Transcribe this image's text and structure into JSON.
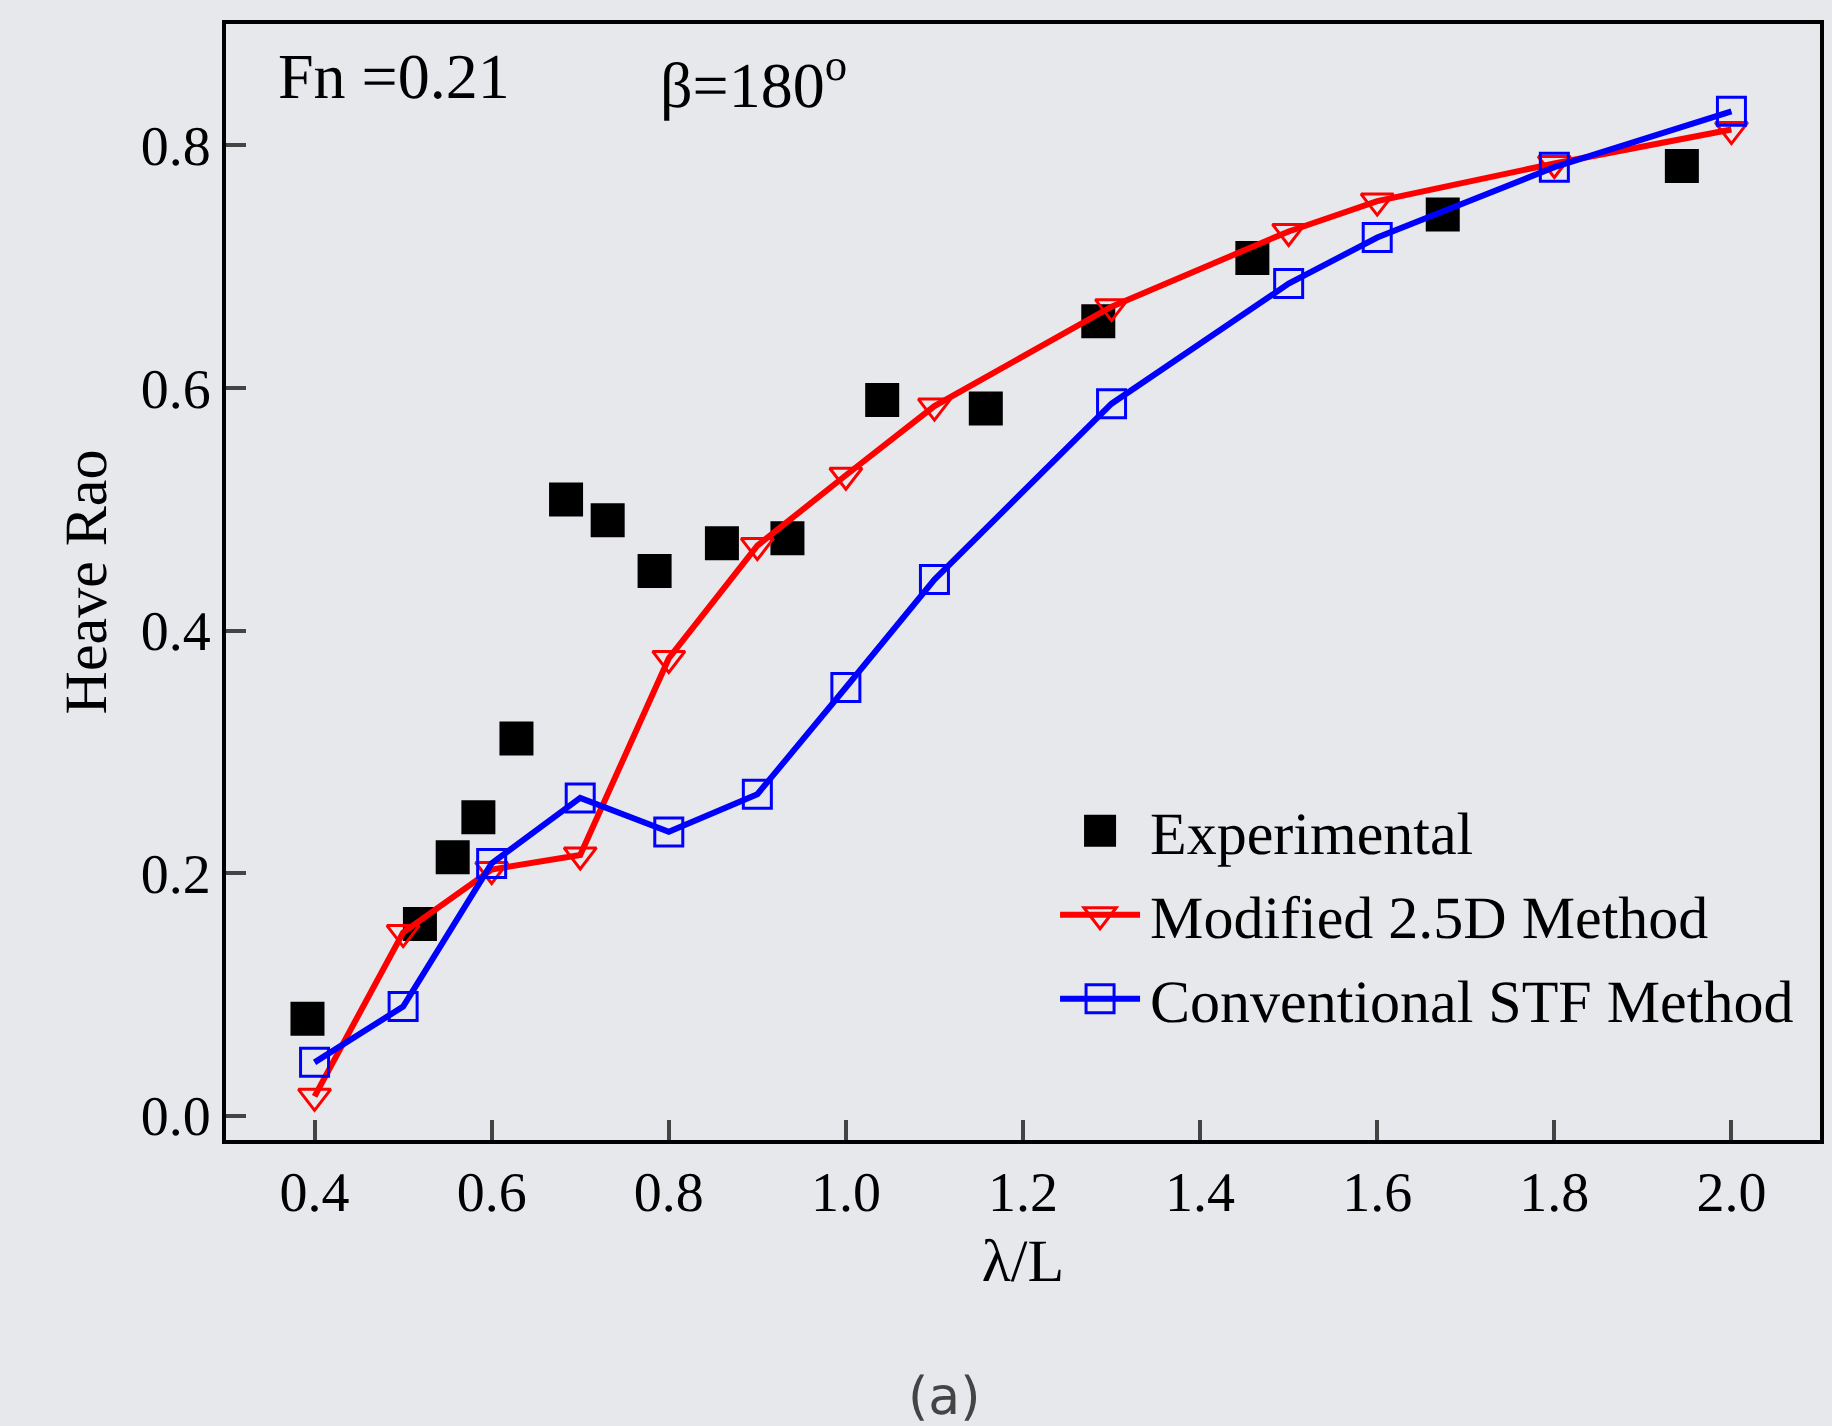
{
  "chart_data": {
    "type": "line",
    "xlabel": "λ/L",
    "ylabel": "Heave Rao",
    "annotations": [
      "Fn =0.21",
      "β=180$^{o}$",
      "(a)"
    ],
    "xlim": [
      0.3,
      2.1
    ],
    "xticks": [
      0.4,
      0.6,
      0.8,
      {
        "value": 1,
        "label": "1.0"
      },
      1.2,
      1.4,
      1.6,
      1.8,
      {
        "value": 2,
        "label": "2.0"
      }
    ],
    "ylim": [
      -0.02,
      0.9
    ],
    "yticks": [
      {
        "value": 0,
        "label": "0.0"
      },
      0.2,
      0.4,
      0.6,
      0.8
    ],
    "grid": false,
    "legend": "bottom right",
    "series": [
      {
        "name": "Experimental",
        "type": "scatter",
        "marker": "square",
        "color": "#000000",
        "x": [
          0.392,
          0.519,
          0.556,
          0.585,
          0.628,
          0.684,
          0.731,
          0.784,
          0.86,
          0.934,
          1.041,
          1.158,
          1.285,
          1.459,
          1.674,
          1.944
        ],
        "values": [
          0.08,
          0.158,
          0.213,
          0.246,
          0.311,
          0.508,
          0.491,
          0.449,
          0.472,
          0.476,
          0.59,
          0.583,
          0.655,
          0.707,
          0.743,
          0.783
        ]
      },
      {
        "name": "Modified 2.5D Method",
        "type": "line",
        "marker": "triangle",
        "color": "#ff0000",
        "x": [
          0.4,
          0.5,
          0.6,
          0.7,
          0.8,
          0.9,
          1.0,
          1.1,
          1.3,
          1.5,
          1.6,
          1.8,
          2.0
        ],
        "values": [
          0.016,
          0.151,
          0.203,
          0.215,
          0.377,
          0.47,
          0.528,
          0.585,
          0.667,
          0.729,
          0.754,
          0.785,
          0.813
        ]
      },
      {
        "name": "Conventional STF Method",
        "type": "line",
        "marker": "square",
        "color": "#0000ff",
        "x": [
          0.4,
          0.5,
          0.6,
          0.7,
          0.8,
          0.9,
          1.0,
          1.1,
          1.3,
          1.5,
          1.6,
          1.8,
          2.0
        ],
        "values": [
          0.044,
          0.09,
          0.208,
          0.262,
          0.234,
          0.265,
          0.353,
          0.442,
          0.587,
          0.686,
          0.724,
          0.782,
          0.828
        ]
      }
    ]
  }
}
